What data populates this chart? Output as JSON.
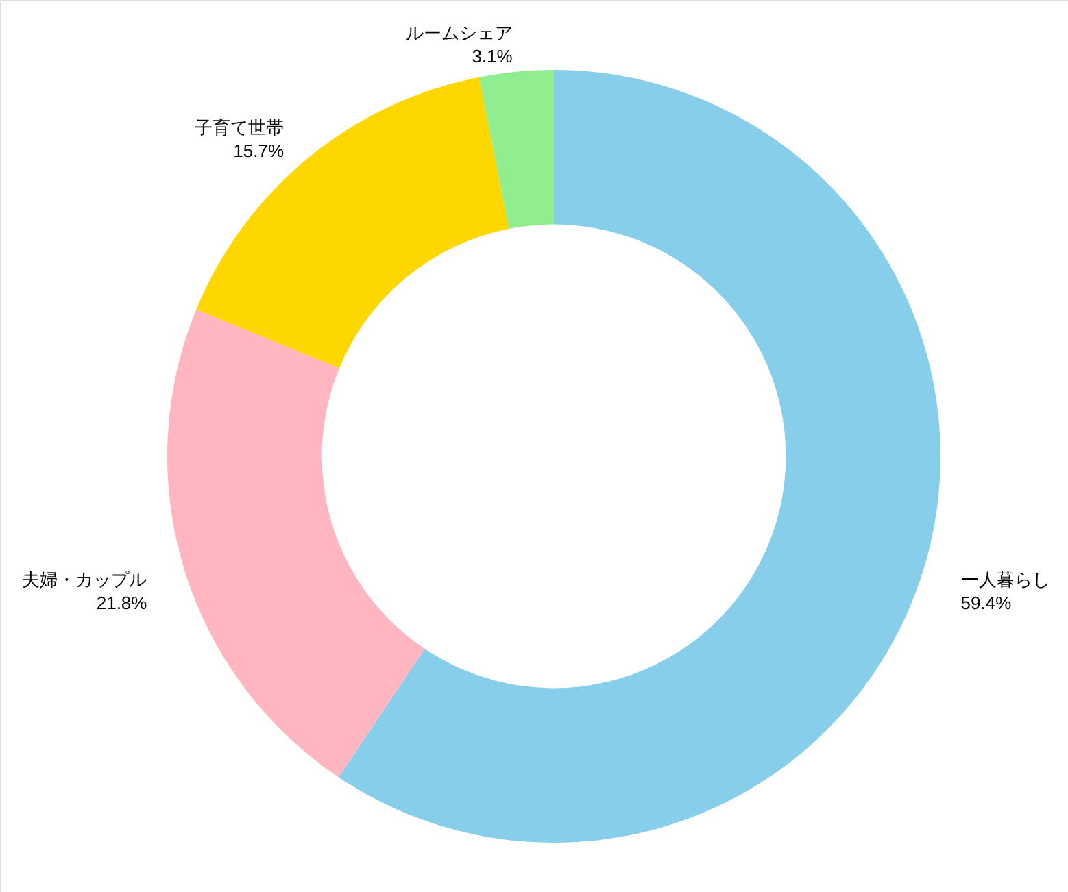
{
  "chart_data": {
    "type": "donut",
    "categories": [
      "一人暮らし",
      "夫婦・カップル",
      "子育て世帯",
      "ルームシェア"
    ],
    "values": [
      59.4,
      21.8,
      15.7,
      3.1
    ],
    "colors": [
      "#87ceeb",
      "#ffb6c1",
      "#ffd700",
      "#90ee90"
    ],
    "value_labels": [
      "59.4%",
      "21.8%",
      "15.7%",
      "3.1%"
    ]
  }
}
